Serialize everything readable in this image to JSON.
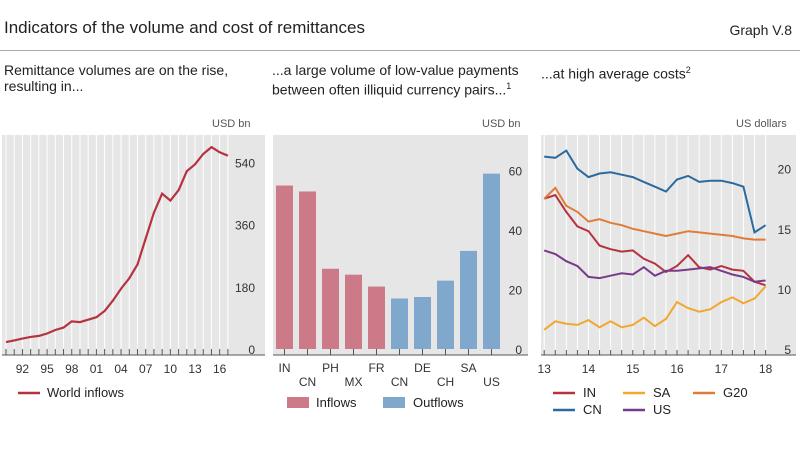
{
  "header": {
    "title": "Indicators of the volume and cost of remittances",
    "graph_ref": "Graph V.8"
  },
  "colors": {
    "red": "#b5333f",
    "pink": "#cc7a87",
    "blue": "#7fa8cc",
    "dblue": "#2b6aa0",
    "orange": "#f0a830",
    "dorange": "#e07b39",
    "purple": "#7a3a8a",
    "panel_bg": "#e6e6e6"
  },
  "chart_data": [
    {
      "type": "line",
      "subtitle": "Remittance volumes are on the rise, resulting in...",
      "unit": "USD bn",
      "x_tick_labels": [
        "92",
        "95",
        "98",
        "01",
        "04",
        "07",
        "10",
        "13",
        "16"
      ],
      "x_tick_years": [
        1992,
        1995,
        1998,
        2001,
        2004,
        2007,
        2010,
        2013,
        2016
      ],
      "y_ticks": [
        0,
        180,
        360,
        540
      ],
      "ylim": [
        0,
        620
      ],
      "xlim": [
        1990,
        2017.5
      ],
      "series": [
        {
          "name": "World inflows",
          "x": [
            1990,
            1991,
            1992,
            1993,
            1994,
            1995,
            1996,
            1997,
            1998,
            1999,
            2000,
            2001,
            2002,
            2003,
            2004,
            2005,
            2006,
            2007,
            2008,
            2009,
            2010,
            2011,
            2012,
            2013,
            2014,
            2015,
            2016,
            2017
          ],
          "values": [
            20,
            25,
            30,
            35,
            38,
            45,
            55,
            62,
            80,
            78,
            85,
            92,
            110,
            140,
            175,
            205,
            245,
            320,
            395,
            450,
            430,
            460,
            515,
            535,
            565,
            585,
            570,
            560
          ]
        }
      ]
    },
    {
      "type": "bar",
      "subtitle": "...a large volume of low-value payments between often illiquid currency pairs...",
      "subtitle_sup": "1",
      "unit": "USD bn",
      "categories": [
        "IN",
        "CN",
        "PH",
        "MX",
        "FR",
        "CN",
        "DE",
        "CH",
        "SA",
        "US"
      ],
      "values": [
        55,
        53,
        27,
        25,
        21,
        17,
        17.5,
        23,
        33,
        59
      ],
      "groups": [
        "Inflows",
        "Inflows",
        "Inflows",
        "Inflows",
        "Inflows",
        "Outflows",
        "Outflows",
        "Outflows",
        "Outflows",
        "Outflows"
      ],
      "y_ticks": [
        0,
        20,
        40,
        60
      ],
      "ylim": [
        0,
        72
      ],
      "legend": [
        "Inflows",
        "Outflows"
      ]
    },
    {
      "type": "line",
      "subtitle": "...at high average costs",
      "subtitle_sup": "2",
      "unit": "US dollars",
      "x_tick_labels": [
        "13",
        "14",
        "15",
        "16",
        "17",
        "18"
      ],
      "x_tick_years": [
        2013,
        2014,
        2015,
        2016,
        2017,
        2018
      ],
      "y_ticks": [
        5,
        10,
        15,
        20
      ],
      "ylim": [
        4.5,
        22.8
      ],
      "xlim": [
        2012.95,
        2018.1
      ],
      "series": [
        {
          "name": "IN",
          "color_key": "red",
          "x": [
            2013,
            2013.25,
            2013.5,
            2013.75,
            2014,
            2014.25,
            2014.5,
            2014.75,
            2015,
            2015.25,
            2015.5,
            2015.75,
            2016,
            2016.25,
            2016.5,
            2016.75,
            2017,
            2017.25,
            2017.5,
            2017.75,
            2018
          ],
          "values": [
            17.5,
            17.8,
            16.4,
            15.2,
            14.8,
            13.6,
            13.3,
            13.1,
            13.2,
            12.5,
            12.1,
            11.4,
            11.9,
            12.8,
            11.8,
            11.6,
            11.9,
            11.6,
            11.5,
            10.6,
            10.3
          ]
        },
        {
          "name": "CN",
          "color_key": "dblue",
          "x": [
            2013,
            2013.25,
            2013.5,
            2013.75,
            2014,
            2014.25,
            2014.5,
            2014.75,
            2015,
            2015.25,
            2015.5,
            2015.75,
            2016,
            2016.25,
            2016.5,
            2016.75,
            2017,
            2017.25,
            2017.5,
            2017.75,
            2018
          ],
          "values": [
            21.0,
            20.9,
            21.5,
            20.0,
            19.3,
            19.6,
            19.7,
            19.5,
            19.3,
            18.9,
            18.5,
            18.1,
            19.1,
            19.4,
            18.9,
            19.0,
            19.0,
            18.8,
            18.5,
            14.7,
            15.3
          ]
        },
        {
          "name": "SA",
          "color_key": "orange",
          "x": [
            2013,
            2013.25,
            2013.5,
            2013.75,
            2014,
            2014.25,
            2014.5,
            2014.75,
            2015,
            2015.25,
            2015.5,
            2015.75,
            2016,
            2016.25,
            2016.5,
            2016.75,
            2017,
            2017.25,
            2017.5,
            2017.75,
            2018
          ],
          "values": [
            6.6,
            7.3,
            7.1,
            7.0,
            7.4,
            6.8,
            7.3,
            6.8,
            7.0,
            7.6,
            6.9,
            7.5,
            8.9,
            8.4,
            8.1,
            8.3,
            8.9,
            9.3,
            8.8,
            9.2,
            10.2
          ]
        },
        {
          "name": "US",
          "color_key": "purple",
          "x": [
            2013,
            2013.25,
            2013.5,
            2013.75,
            2014,
            2014.25,
            2014.5,
            2014.75,
            2015,
            2015.25,
            2015.5,
            2015.75,
            2016,
            2016.25,
            2016.5,
            2016.75,
            2017,
            2017.25,
            2017.5,
            2017.75,
            2018
          ],
          "values": [
            13.2,
            12.9,
            12.3,
            11.9,
            11.0,
            10.9,
            11.1,
            11.3,
            11.2,
            11.8,
            11.1,
            11.5,
            11.5,
            11.6,
            11.7,
            11.8,
            11.5,
            11.2,
            11.0,
            10.6,
            10.7
          ]
        },
        {
          "name": "G20",
          "color_key": "dorange",
          "x": [
            2013,
            2013.25,
            2013.5,
            2013.75,
            2014,
            2014.25,
            2014.5,
            2014.75,
            2015,
            2015.25,
            2015.5,
            2015.75,
            2016,
            2016.25,
            2016.5,
            2016.75,
            2017,
            2017.25,
            2017.5,
            2017.75,
            2018
          ],
          "values": [
            17.5,
            18.4,
            16.9,
            16.4,
            15.6,
            15.8,
            15.5,
            15.3,
            15.0,
            14.8,
            14.6,
            14.4,
            14.6,
            14.8,
            14.7,
            14.6,
            14.5,
            14.4,
            14.2,
            14.1,
            14.1
          ]
        }
      ]
    }
  ]
}
